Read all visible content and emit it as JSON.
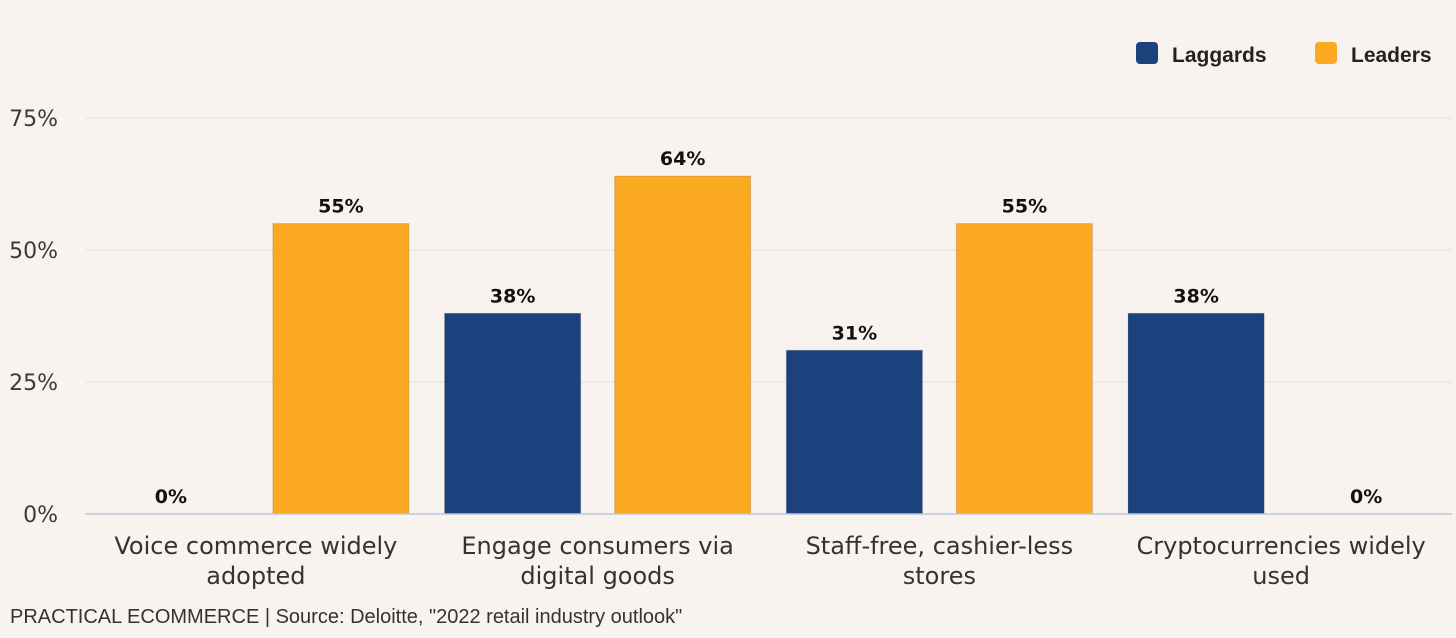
{
  "chart_data": {
    "type": "bar",
    "title": "",
    "xlabel": "",
    "ylabel": "",
    "ylim": [
      0,
      75
    ],
    "y_ticks": [
      0,
      25,
      50,
      75
    ],
    "y_tick_labels": [
      "0%",
      "25%",
      "50%",
      "75%"
    ],
    "categories": [
      [
        "Voice commerce widely",
        "adopted"
      ],
      [
        "Engage consumers via",
        "digital goods"
      ],
      [
        "Staff-free, cashier-less",
        "stores"
      ],
      [
        "Cryptocurrencies widely",
        "used"
      ]
    ],
    "series": [
      {
        "name": "Laggards",
        "color": "#1b427c",
        "values": [
          0,
          38,
          31,
          38
        ],
        "labels": [
          "0%",
          "38%",
          "31%",
          "38%"
        ]
      },
      {
        "name": "Leaders",
        "color": "#fca922",
        "values": [
          55,
          64,
          55,
          0
        ],
        "labels": [
          "55%",
          "64%",
          "55%",
          "0%"
        ]
      }
    ],
    "grid": true,
    "legend_position": "top-right"
  },
  "source_note": "PRACTICAL ECOMMERCE | Source: Deloitte, \"2022 retail industry outlook\"",
  "colors": {
    "background": "#f9f3ef",
    "grid": "#e6dcd8",
    "baseline": "#b8c8dc"
  }
}
